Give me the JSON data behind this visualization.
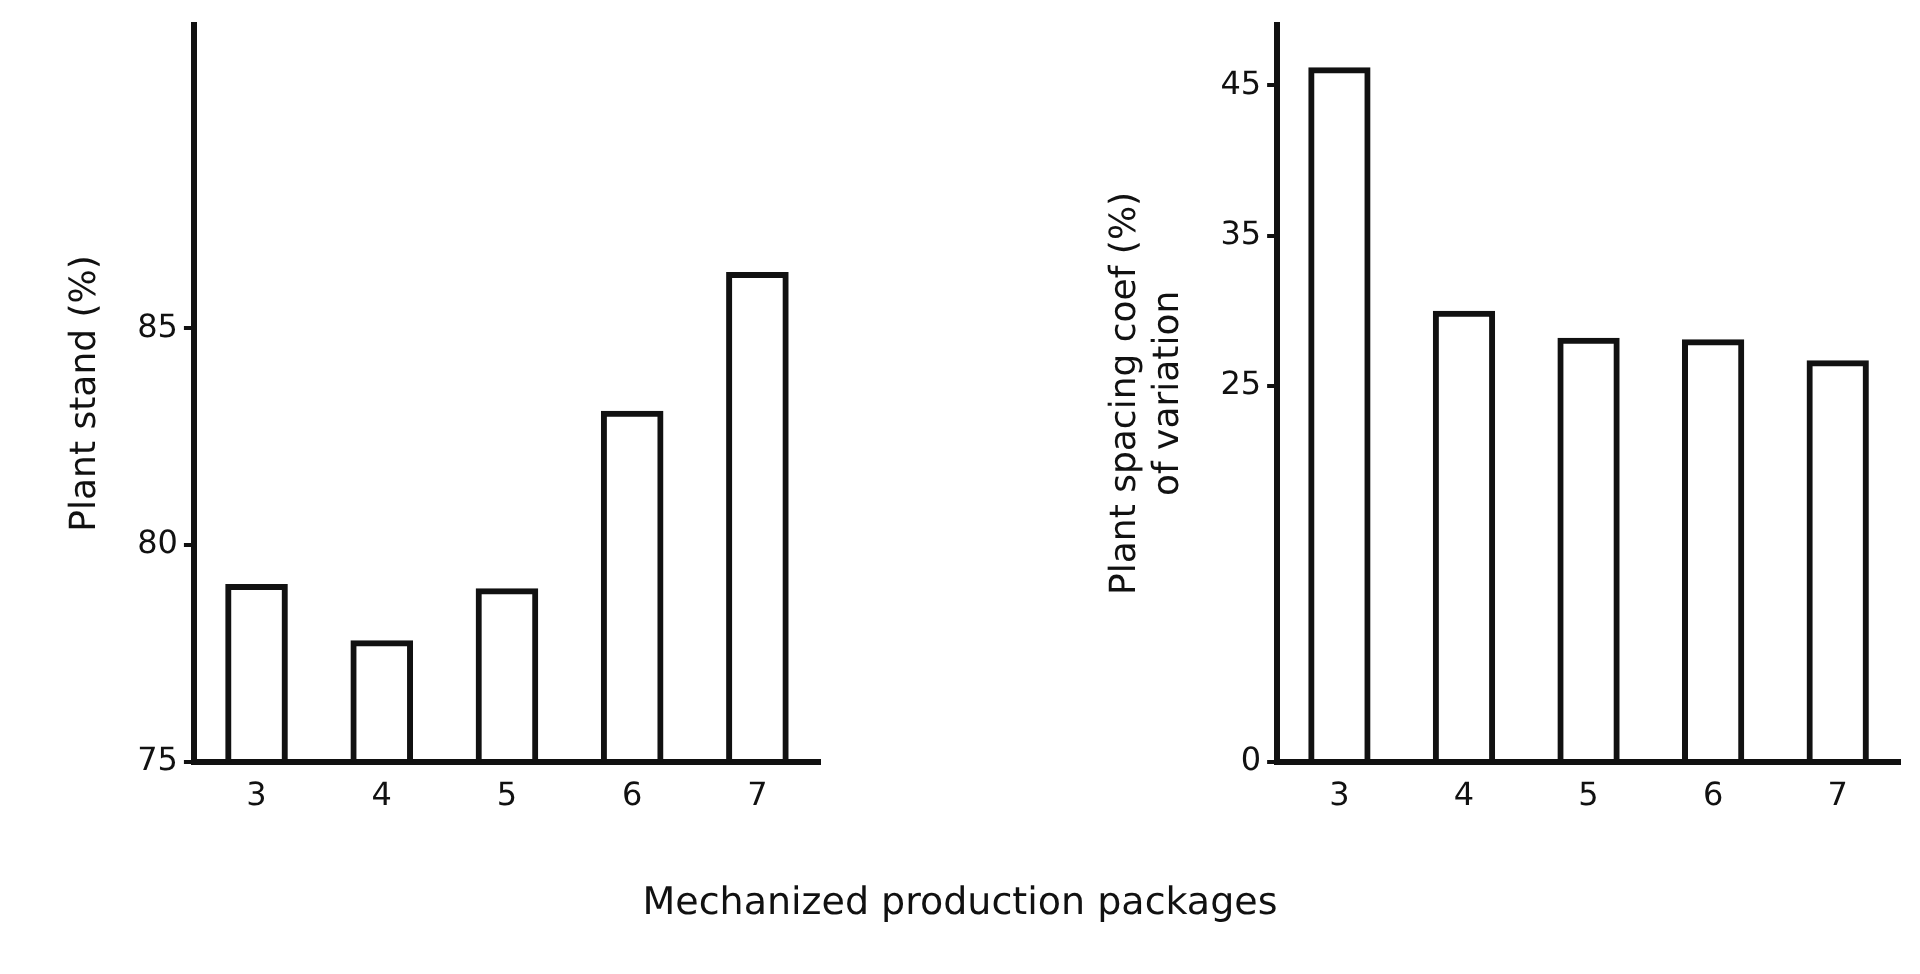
{
  "chart_data": [
    {
      "type": "bar",
      "ylabel": "Plant stand (%)",
      "xlabel": "Mechanized production packages",
      "categories": [
        "3",
        "4",
        "5",
        "6",
        "7"
      ],
      "values": [
        79.1,
        77.8,
        79.0,
        83.1,
        86.3
      ],
      "color": "#111111",
      "ylim": [
        75,
        92
      ],
      "yticks": [
        75,
        80,
        85
      ],
      "grid": false,
      "legend": false
    },
    {
      "type": "bar",
      "ylabel": "Plant spacing coef (%)\nof variation",
      "categories": [
        "3",
        "4",
        "5",
        "6",
        "7"
      ],
      "values": [
        46.2,
        30.0,
        28.2,
        28.1,
        26.7
      ],
      "color": "#111111",
      "ylim": [
        0,
        49
      ],
      "yticks": [
        0,
        25,
        35,
        45
      ],
      "grid": false,
      "legend": false
    }
  ]
}
